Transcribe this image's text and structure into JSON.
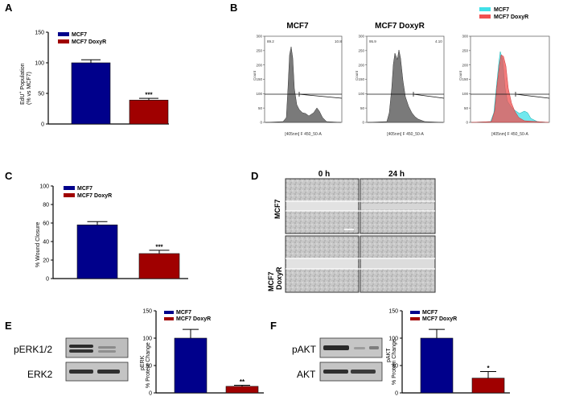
{
  "panel_labels": {
    "a": "A",
    "b": "B",
    "c": "C",
    "d": "D",
    "e": "E",
    "f": "F"
  },
  "colors": {
    "mcf7": "#00008b",
    "doxyr": "#a00000",
    "cyan": "#40e0e8",
    "red_fill": "#f05050",
    "hist_fill": "#808080"
  },
  "chart_data": [
    {
      "id": "A",
      "type": "bar",
      "categories": [
        "MCF7",
        "MCF7 DoxyR"
      ],
      "values": [
        100,
        39
      ],
      "errors": [
        5,
        3
      ],
      "ylabel_line1": "EdU",
      "ylabel_sup": "+",
      "ylabel_line1b": " Population",
      "ylabel_line2": "(% vs MCF7)",
      "ylim": [
        0,
        150
      ],
      "yticks": [
        "0",
        "50",
        "100",
        "150"
      ],
      "legend": [
        "MCF7",
        "MCF7 DoxyR"
      ],
      "significance": "***"
    },
    {
      "id": "C",
      "type": "bar",
      "categories": [
        "MCF7",
        "MCF7  DoxyR"
      ],
      "values": [
        58,
        27
      ],
      "errors": [
        3.5,
        3.5
      ],
      "ylabel": "% Wound Closure",
      "ylim": [
        0,
        100
      ],
      "yticks": [
        "0",
        "20",
        "40",
        "60",
        "80",
        "100"
      ],
      "legend": [
        "MCF7",
        "MCF7  DoxyR"
      ],
      "significance": "***"
    },
    {
      "id": "E",
      "type": "bar",
      "categories": [
        "MCF7",
        "MCF7 DoxyR"
      ],
      "values": [
        100,
        12
      ],
      "errors": [
        16,
        2
      ],
      "ylabel_line1": "pERK",
      "ylabel_line2": "% Protein  Change",
      "ylim": [
        0,
        150
      ],
      "yticks": [
        "0",
        "50",
        "100",
        "150"
      ],
      "legend": [
        "MCF7",
        "MCF7 DoxyR"
      ],
      "significance": "**"
    },
    {
      "id": "F",
      "type": "bar",
      "categories": [
        "MCF7",
        "MCF7 DoxyR"
      ],
      "values": [
        100,
        27
      ],
      "errors": [
        16,
        12
      ],
      "ylabel_line1": "pAKT",
      "ylabel_line2": "% Protein Change",
      "ylim": [
        0,
        150
      ],
      "yticks": [
        "0",
        "50",
        "100",
        "150"
      ],
      "legend": [
        "MCF7",
        "MCF7 DoxyR"
      ],
      "significance": "*"
    },
    {
      "id": "B",
      "type": "histogram",
      "plots": [
        {
          "title": "MCF7",
          "gate_left": "89.2",
          "gate_right": "10.8",
          "ylabel": "Count",
          "xlabel": "[405nm] F 450_50-A"
        },
        {
          "title": "MCF7 DoxyR",
          "gate_left": "95.9",
          "gate_right": "4.10",
          "ylabel": "Count",
          "xlabel": "[405nm] F 450_50-A"
        },
        {
          "title": "",
          "ylabel": "Count",
          "xlabel": "[405nm] F 450_50-A"
        }
      ],
      "yticks": [
        "0",
        "50",
        "100",
        "150",
        "200",
        "250",
        "300"
      ],
      "overlay_legend": [
        "MCF7",
        "MCF7 DoxyR"
      ]
    }
  ],
  "panel_d": {
    "col_headers": [
      "0 h",
      "24 h"
    ],
    "rows": [
      "MCF7",
      "MCF7\nDoxyR"
    ],
    "row1": "MCF7",
    "row2a": "MCF7",
    "row2b": "DoxyR"
  },
  "blots": {
    "e": {
      "top": "pERK1/2",
      "bottom": "ERK2"
    },
    "f": {
      "top": "pAKT",
      "bottom": "AKT"
    }
  }
}
